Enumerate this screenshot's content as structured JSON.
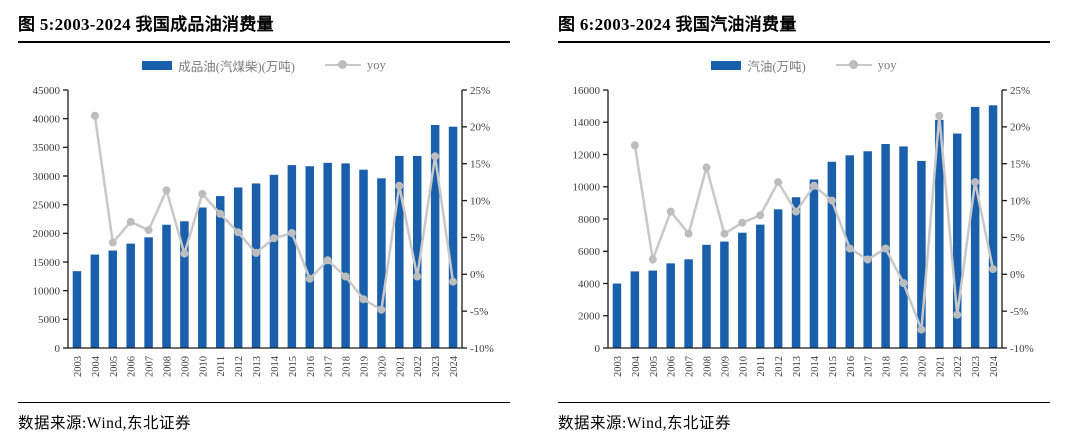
{
  "window": {
    "background": "#ffffff"
  },
  "colors": {
    "bar": "#1a5fac",
    "line": "#c8c8c8",
    "marker": "#bdbdbd",
    "axis": "#1a1a1a",
    "tick_label": "#404040",
    "legend_text": "#7a7a7a",
    "title": "#000000"
  },
  "charts": [
    {
      "title": "图 5:2003-2024 我国成品油消费量",
      "legend": {
        "bar_label": "成品油(汽煤柴)(万吨)",
        "line_label": "yoy"
      },
      "source": "数据来源:Wind,东北证券"
    },
    {
      "title": "图 6:2003-2024 我国汽油消费量",
      "legend": {
        "bar_label": "汽油(万吨)",
        "line_label": "yoy"
      },
      "source": "数据来源:Wind,东北证券"
    }
  ],
  "chart_data": [
    {
      "type": "bar",
      "title": "图 5:2003-2024 我国成品油消费量",
      "categories": [
        "2003",
        "2004",
        "2005",
        "2006",
        "2007",
        "2008",
        "2009",
        "2010",
        "2011",
        "2012",
        "2013",
        "2014",
        "2015",
        "2016",
        "2017",
        "2018",
        "2019",
        "2020",
        "2021",
        "2022",
        "2023",
        "2024"
      ],
      "series": [
        {
          "name": "成品油(汽煤柴)(万吨)",
          "type": "bar",
          "axis": "left",
          "values": [
            13400,
            16300,
            17000,
            18200,
            19300,
            21500,
            22100,
            24500,
            26500,
            28000,
            28700,
            30200,
            31900,
            31700,
            32300,
            32200,
            31100,
            29600,
            33500,
            33500,
            38900,
            38600
          ]
        },
        {
          "name": "yoy",
          "type": "line",
          "axis": "right",
          "values": [
            null,
            21.5,
            4.3,
            7.1,
            6.0,
            11.4,
            2.8,
            10.9,
            8.2,
            5.7,
            2.9,
            4.9,
            5.6,
            -0.6,
            1.9,
            -0.3,
            -3.4,
            -4.8,
            12.0,
            -0.3,
            16.0,
            -1.0
          ]
        }
      ],
      "left_axis": {
        "min": 0,
        "max": 45000,
        "step": 5000,
        "ticks": [
          "0",
          "5000",
          "10000",
          "15000",
          "20000",
          "25000",
          "30000",
          "35000",
          "40000",
          "45000"
        ]
      },
      "right_axis": {
        "min": -10,
        "max": 25,
        "step": 5,
        "ticks": [
          "-10%",
          "-5%",
          "0%",
          "5%",
          "10%",
          "15%",
          "20%",
          "25%"
        ]
      },
      "grid": false,
      "legend_position": "top"
    },
    {
      "type": "bar",
      "title": "图 6:2003-2024 我国汽油消费量",
      "categories": [
        "2003",
        "2004",
        "2005",
        "2006",
        "2007",
        "2008",
        "2009",
        "2010",
        "2011",
        "2012",
        "2013",
        "2014",
        "2015",
        "2016",
        "2017",
        "2018",
        "2019",
        "2020",
        "2021",
        "2022",
        "2023",
        "2024"
      ],
      "series": [
        {
          "name": "汽油(万吨)",
          "type": "bar",
          "axis": "left",
          "values": [
            4000,
            4750,
            4800,
            5250,
            5500,
            6400,
            6600,
            7150,
            7650,
            8600,
            9350,
            10450,
            11550,
            11950,
            12200,
            12650,
            12500,
            11600,
            14150,
            13300,
            14950,
            15050
          ]
        },
        {
          "name": "yoy",
          "type": "line",
          "axis": "right",
          "values": [
            null,
            17.5,
            2.0,
            8.5,
            5.5,
            14.5,
            5.5,
            7.0,
            8.0,
            12.5,
            8.5,
            12.0,
            10.0,
            3.5,
            2.0,
            3.5,
            -1.2,
            -7.5,
            21.5,
            -5.5,
            12.5,
            0.7
          ]
        }
      ],
      "left_axis": {
        "min": 0,
        "max": 16000,
        "step": 2000,
        "ticks": [
          "0",
          "2000",
          "4000",
          "6000",
          "8000",
          "10000",
          "12000",
          "14000",
          "16000"
        ]
      },
      "right_axis": {
        "min": -10,
        "max": 25,
        "step": 5,
        "ticks": [
          "-10%",
          "-5%",
          "0%",
          "5%",
          "10%",
          "15%",
          "20%",
          "25%"
        ]
      },
      "grid": false,
      "legend_position": "top"
    }
  ]
}
